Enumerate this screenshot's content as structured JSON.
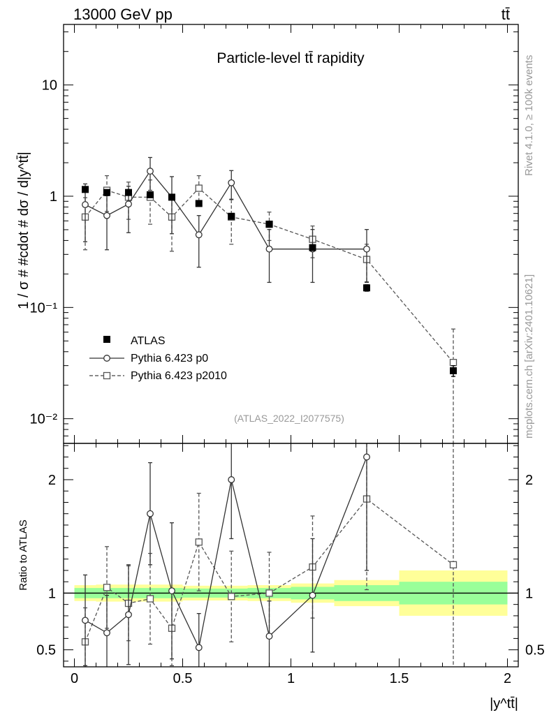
{
  "header": {
    "left": "13000 GeV pp",
    "right": "tt̄"
  },
  "side_text": {
    "top": "Rivet 4.1.0, ≥ 100k events",
    "bottom": "mcplots.cern.ch [arXiv:2401.10621]"
  },
  "chart_data": {
    "type": "scatter",
    "title": "Particle-level tt̄ rapidity",
    "analysis_tag": "(ATLAS_2022_I2077575)",
    "xlabel": "|y^tt̄|",
    "ylabel": "1 / σ # #cdot # dσ / d|y^tt̄|",
    "ratio_ylabel": "Ratio to ATLAS",
    "xlim": [
      -0.05,
      2.05
    ],
    "ylim": [
      0.006,
      35
    ],
    "yscale": "log",
    "ratio_ylim": [
      0.35,
      2.32
    ],
    "x_ticks": [
      "0",
      "0.5",
      "1",
      "1.5",
      "2"
    ],
    "x_tick_values": [
      0,
      0.5,
      1,
      1.5,
      2
    ],
    "y_ticks": [
      "10",
      "1",
      "10⁻¹",
      "10⁻²"
    ],
    "y_tick_values": [
      10,
      1,
      0.1,
      0.01
    ],
    "ratio_ticks": [
      "2",
      "1",
      "0.5"
    ],
    "ratio_tick_values": [
      2,
      1,
      0.5
    ],
    "bins": [
      {
        "x": 0.05,
        "lo": 0.0,
        "hi": 0.1
      },
      {
        "x": 0.15,
        "lo": 0.1,
        "hi": 0.2
      },
      {
        "x": 0.25,
        "lo": 0.2,
        "hi": 0.3
      },
      {
        "x": 0.35,
        "lo": 0.3,
        "hi": 0.4
      },
      {
        "x": 0.45,
        "lo": 0.4,
        "hi": 0.5
      },
      {
        "x": 0.575,
        "lo": 0.5,
        "hi": 0.65
      },
      {
        "x": 0.725,
        "lo": 0.65,
        "hi": 0.8
      },
      {
        "x": 0.9,
        "lo": 0.8,
        "hi": 1.0
      },
      {
        "x": 1.1,
        "lo": 1.0,
        "hi": 1.2
      },
      {
        "x": 1.35,
        "lo": 1.2,
        "hi": 1.5
      },
      {
        "x": 1.75,
        "lo": 1.5,
        "hi": 2.0
      }
    ],
    "series": [
      {
        "name": "ATLAS",
        "style": "data",
        "values": [
          1.15,
          1.08,
          1.08,
          1.03,
          0.98,
          0.86,
          0.66,
          0.56,
          0.345,
          0.15,
          0.027
        ],
        "err_lo": [
          0.06,
          0.05,
          0.05,
          0.05,
          0.05,
          0.04,
          0.03,
          0.03,
          0.02,
          0.01,
          0.003
        ],
        "err_hi": [
          0.06,
          0.05,
          0.05,
          0.05,
          0.05,
          0.04,
          0.03,
          0.03,
          0.02,
          0.01,
          0.003
        ]
      },
      {
        "name": "Pythia 6.423 p0",
        "style": "solid-circle",
        "values": [
          0.84,
          0.67,
          0.85,
          1.68,
          0.98,
          0.45,
          1.32,
          0.335,
          0.335,
          0.335,
          null
        ],
        "err_lo": [
          0.45,
          0.34,
          0.38,
          0.55,
          0.52,
          0.22,
          0.38,
          0.167,
          0.167,
          0.167,
          null
        ],
        "err_hi": [
          0.45,
          0.34,
          0.38,
          0.55,
          0.52,
          0.22,
          0.38,
          0.167,
          0.167,
          0.167,
          null
        ]
      },
      {
        "name": "Pythia 6.423 p2010",
        "style": "dashed-square",
        "values": [
          0.65,
          1.13,
          0.98,
          0.98,
          0.65,
          1.18,
          0.65,
          0.56,
          0.41,
          0.27,
          0.032
        ],
        "err_lo": [
          0.32,
          0.4,
          0.36,
          0.42,
          0.33,
          0.35,
          0.28,
          0.16,
          0.13,
          0.1,
          0.032
        ],
        "err_hi": [
          0.32,
          0.4,
          0.36,
          0.42,
          0.33,
          0.35,
          0.28,
          0.16,
          0.13,
          0.1,
          0.032
        ]
      }
    ],
    "ratio_series": [
      {
        "name": "Pythia 6.423 p0",
        "values": [
          0.76,
          0.65,
          0.81,
          1.7,
          1.02,
          0.52,
          2.0,
          0.62,
          0.98,
          2.2,
          null
        ],
        "err_lo": [
          0.4,
          0.33,
          0.44,
          0.45,
          0.6,
          0.3,
          0.52,
          0.31,
          0.5,
          1.0,
          null
        ],
        "err_hi": [
          0.4,
          0.33,
          0.44,
          0.45,
          0.6,
          0.3,
          0.52,
          0.31,
          0.5,
          1.0,
          null
        ]
      },
      {
        "name": "Pythia 6.423 p2010",
        "values": [
          0.57,
          1.05,
          0.91,
          0.95,
          0.69,
          1.45,
          0.97,
          1.0,
          1.23,
          1.83,
          1.25
        ],
        "err_lo": [
          0.3,
          0.36,
          0.33,
          0.4,
          0.33,
          0.43,
          0.4,
          0.36,
          0.45,
          0.8,
          1.25
        ],
        "err_hi": [
          0.3,
          0.36,
          0.33,
          0.4,
          0.33,
          0.43,
          0.4,
          0.36,
          0.45,
          0.8,
          1.25
        ]
      }
    ],
    "ratio_bands": {
      "green_lo": [
        0.955,
        0.955,
        0.955,
        0.955,
        0.955,
        0.96,
        0.96,
        0.955,
        0.945,
        0.93,
        0.9
      ],
      "green_hi": [
        1.045,
        1.045,
        1.045,
        1.045,
        1.045,
        1.04,
        1.04,
        1.045,
        1.055,
        1.07,
        1.1
      ],
      "yellow_lo": [
        0.93,
        0.925,
        0.925,
        0.925,
        0.925,
        0.935,
        0.935,
        0.93,
        0.915,
        0.885,
        0.8
      ],
      "yellow_hi": [
        1.07,
        1.075,
        1.075,
        1.075,
        1.075,
        1.065,
        1.065,
        1.07,
        1.085,
        1.115,
        1.2
      ]
    }
  }
}
